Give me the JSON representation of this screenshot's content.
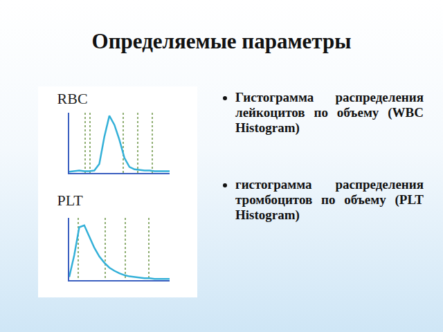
{
  "slide": {
    "title": "Определяемые параметры",
    "bullets": [
      "Гистограмма распределения лейкоцитов по объему (WBC Histogram)",
      "гистограмма распределения тромбоцитов по объему (PLT Histogram)"
    ]
  },
  "chart_data": [
    {
      "type": "line",
      "title": "RBC",
      "x": [
        0,
        5,
        10,
        15,
        20,
        25,
        30,
        35,
        40,
        45,
        50,
        55,
        60,
        65,
        70,
        75,
        80,
        85,
        90,
        95,
        100
      ],
      "values": [
        2,
        3,
        4,
        3,
        3,
        4,
        15,
        60,
        95,
        80,
        55,
        25,
        10,
        6,
        5,
        4,
        4,
        3,
        3,
        3,
        3
      ],
      "color": "#33b0d8",
      "xlim": [
        0,
        100
      ],
      "ylim": [
        0,
        100
      ],
      "xticks": [
        16,
        21,
        54,
        68,
        83
      ],
      "grid": true,
      "tick_labels": false
    },
    {
      "type": "line",
      "title": "PLT",
      "x": [
        0,
        5,
        10,
        15,
        20,
        25,
        30,
        35,
        40,
        45,
        50,
        55,
        60,
        65,
        70,
        75,
        80,
        85,
        90,
        95,
        100
      ],
      "values": [
        5,
        40,
        85,
        88,
        70,
        52,
        38,
        28,
        20,
        15,
        11,
        8,
        6,
        5,
        4,
        3,
        3,
        2,
        2,
        2,
        2
      ],
      "color": "#33b0d8",
      "xlim": [
        0,
        100
      ],
      "ylim": [
        0,
        100
      ],
      "xticks": [
        9,
        36,
        56,
        79
      ],
      "grid": true,
      "tick_labels": false
    }
  ]
}
